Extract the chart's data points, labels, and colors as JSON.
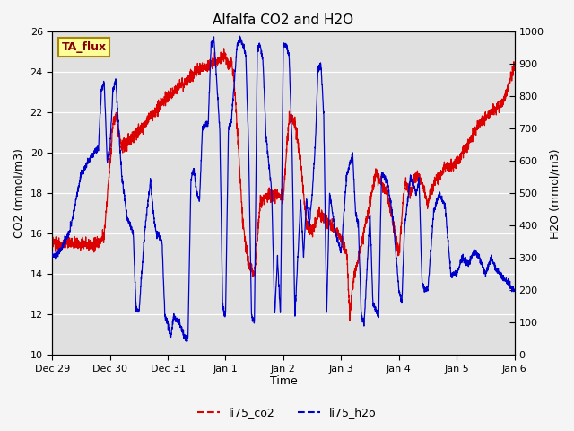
{
  "title": "Alfalfa CO2 and H2O",
  "xlabel": "Time",
  "ylabel_left": "CO2 (mmol/m3)",
  "ylabel_right": "H2O (mmol/m3)",
  "ylim_left": [
    10,
    26
  ],
  "ylim_right": [
    0,
    1000
  ],
  "yticks_left": [
    10,
    12,
    14,
    16,
    18,
    20,
    22,
    24,
    26
  ],
  "yticks_right": [
    0,
    100,
    200,
    300,
    400,
    500,
    600,
    700,
    800,
    900,
    1000
  ],
  "xtick_labels": [
    "Dec 29",
    "Dec 30",
    "Dec 31",
    "Jan 1",
    "Jan 2",
    "Jan 3",
    "Jan 4",
    "Jan 5",
    "Jan 6"
  ],
  "legend_label1": "li75_co2",
  "legend_label2": "li75_h2o",
  "legend_color1": "#dd0000",
  "legend_color2": "#0000cc",
  "annotation_text": "TA_flux",
  "annotation_bg": "#ffff99",
  "annotation_border": "#aa8800",
  "plot_bg_color": "#e0e0e0",
  "fig_bg_color": "#f5f5f5",
  "title_fontsize": 11,
  "axis_fontsize": 9,
  "tick_fontsize": 8,
  "legend_fontsize": 9
}
